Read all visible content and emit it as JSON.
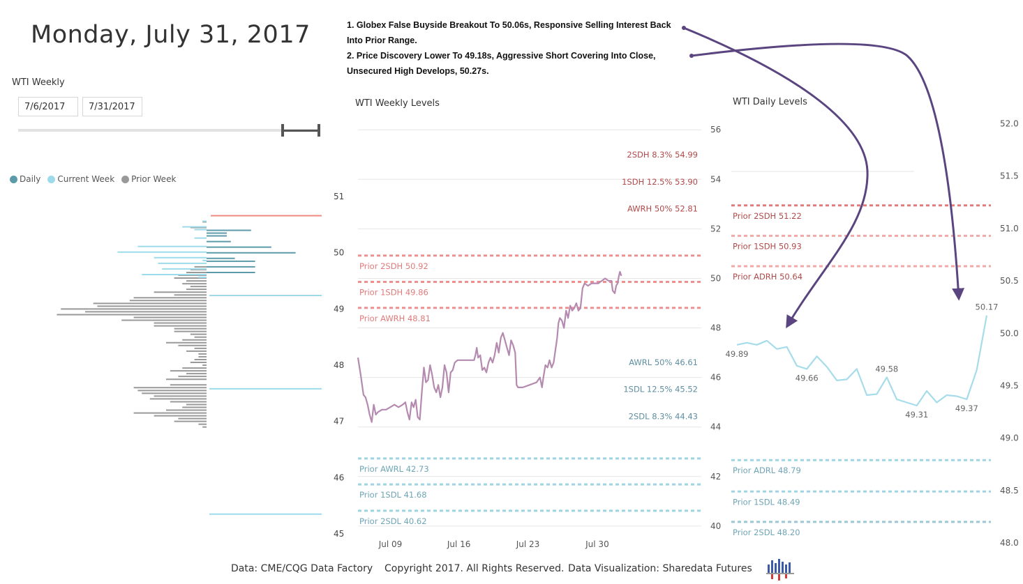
{
  "title": "Monday, July 31, 2017",
  "slicer": {
    "label": "WTI Weekly",
    "start_date": "7/6/2017",
    "end_date": "7/31/2017"
  },
  "legend": [
    {
      "label": "Daily",
      "color": "#5b9aa8"
    },
    {
      "label": "Current Week",
      "color": "#9ddbeb"
    },
    {
      "label": "Prior Week",
      "color": "#999999"
    }
  ],
  "notes": [
    "1. Globex False Buyside Breakout To 50.06s, Responsive Selling Interest Back Into Prior Range.",
    "2. Price Discovery Lower To 49.18s, Aggressive Short Covering Into Close, Unsecured High Develops, 50.27s."
  ],
  "footer": {
    "source": "Data: CME/CQG Data Factory",
    "copyright": "Copyright 2017. All Rights Reserved.",
    "viz": "Data Visualization: Sharedata Futures"
  },
  "colors": {
    "line": "#b58ab0",
    "daily_line": "#a6dcea",
    "high": "#e57373",
    "low": "#7fc6d8",
    "arrow": "#5a4580",
    "daily_bar": "#5b9aa8",
    "current_bar": "#9ddbeb",
    "prior_bar": "#999999"
  },
  "chart_data": [
    {
      "type": "bar",
      "name": "volume-profile",
      "orientation": "horizontal",
      "y_ticks": [
        51,
        50,
        49,
        48,
        47,
        46,
        45
      ],
      "ylim": [
        44.95,
        51.15
      ],
      "price_start": 50.65,
      "price_step": 0.05,
      "prior_week": [
        0,
        0,
        1,
        0,
        4,
        0,
        0,
        0,
        0,
        0,
        0,
        0,
        0,
        0,
        0,
        0,
        0,
        0,
        3,
        4,
        5,
        7,
        8,
        5,
        6,
        4,
        5,
        13,
        8,
        18,
        19,
        28,
        27,
        36,
        30,
        37,
        18,
        21,
        13,
        13,
        8,
        8,
        4,
        3,
        6,
        10,
        7,
        3,
        5,
        2,
        2,
        3,
        4,
        1,
        6,
        9,
        5,
        7,
        10,
        0,
        9,
        18,
        17,
        16,
        13,
        14,
        9,
        5,
        6,
        10,
        18,
        13,
        7,
        8,
        2,
        1
      ],
      "current_week": [
        0,
        0,
        1,
        0,
        6,
        3,
        0,
        0,
        3,
        0,
        0,
        17,
        0,
        22,
        0,
        13,
        1,
        12,
        0,
        11,
        0,
        16,
        2,
        0,
        0,
        0,
        0,
        0,
        0,
        0,
        0,
        0,
        0,
        0,
        0,
        0,
        0,
        0,
        0,
        0,
        0,
        0,
        0,
        0,
        0,
        0,
        0,
        0,
        0,
        0,
        0,
        0,
        0,
        0,
        0,
        0,
        0,
        0,
        0,
        0,
        0,
        0,
        0,
        0,
        0,
        0,
        0,
        0,
        0,
        0,
        0,
        0,
        0,
        0,
        0,
        0
      ],
      "daily": [
        0,
        0,
        0,
        0,
        0,
        11,
        5,
        5,
        0,
        6,
        0,
        16,
        0,
        22,
        0,
        7,
        12,
        0,
        12,
        0,
        12,
        0,
        0,
        0,
        0,
        0,
        0,
        0,
        0,
        0,
        0,
        0,
        0,
        0,
        0,
        0,
        0,
        0,
        0,
        0,
        0,
        0,
        0,
        0,
        0,
        0,
        0,
        0,
        0,
        0,
        0,
        0,
        0,
        0,
        0,
        0,
        0,
        0,
        0,
        0,
        0,
        0,
        0,
        0,
        0,
        0,
        0,
        0,
        0,
        0,
        0,
        0,
        0,
        0,
        0,
        0
      ],
      "level_lines": [
        {
          "price": 50.66,
          "kind": "high"
        },
        {
          "price": 49.24,
          "kind": "low"
        },
        {
          "price": 47.58,
          "kind": "low"
        },
        {
          "price": 45.35,
          "kind": "low"
        }
      ]
    },
    {
      "type": "line",
      "name": "wti-weekly-levels",
      "title": "WTI Weekly Levels",
      "ylim": [
        39.8,
        56.4
      ],
      "y_ticks": [
        56,
        54,
        52,
        50,
        48,
        46,
        44,
        42,
        40
      ],
      "x_ticks": [
        "Jul 09",
        "Jul 16",
        "Jul 23",
        "Jul 30"
      ],
      "x_tick_pos": [
        0.0945,
        0.294,
        0.495,
        0.697
      ],
      "series": [
        {
          "values": [
            [
              0.0,
              46.8
            ],
            [
              0.008,
              46.1
            ],
            [
              0.016,
              45.3
            ],
            [
              0.022,
              45.2
            ],
            [
              0.028,
              44.9
            ],
            [
              0.034,
              44.5
            ],
            [
              0.04,
              44.2
            ],
            [
              0.046,
              44.9
            ],
            [
              0.052,
              44.5
            ],
            [
              0.058,
              44.6
            ],
            [
              0.07,
              44.7
            ],
            [
              0.082,
              44.7
            ],
            [
              0.094,
              44.8
            ],
            [
              0.106,
              44.9
            ],
            [
              0.118,
              44.8
            ],
            [
              0.13,
              44.9
            ],
            [
              0.138,
              45.0
            ],
            [
              0.144,
              44.6
            ],
            [
              0.15,
              44.3
            ],
            [
              0.156,
              45.0
            ],
            [
              0.162,
              44.8
            ],
            [
              0.168,
              45.1
            ],
            [
              0.174,
              44.4
            ],
            [
              0.18,
              44.3
            ],
            [
              0.186,
              45.4
            ],
            [
              0.192,
              46.4
            ],
            [
              0.198,
              45.8
            ],
            [
              0.204,
              45.9
            ],
            [
              0.21,
              46.5
            ],
            [
              0.216,
              46.1
            ],
            [
              0.222,
              45.6
            ],
            [
              0.228,
              45.4
            ],
            [
              0.234,
              45.7
            ],
            [
              0.24,
              45.2
            ],
            [
              0.246,
              45.6
            ],
            [
              0.252,
              46.5
            ],
            [
              0.258,
              46.2
            ],
            [
              0.264,
              45.4
            ],
            [
              0.27,
              46.2
            ],
            [
              0.276,
              46.3
            ],
            [
              0.282,
              46.6
            ],
            [
              0.29,
              46.7
            ],
            [
              0.3,
              46.7
            ],
            [
              0.31,
              46.7
            ],
            [
              0.32,
              46.7
            ],
            [
              0.33,
              46.7
            ],
            [
              0.338,
              46.7
            ],
            [
              0.342,
              46.9
            ],
            [
              0.346,
              47.2
            ],
            [
              0.35,
              46.8
            ],
            [
              0.356,
              46.9
            ],
            [
              0.362,
              46.3
            ],
            [
              0.368,
              46.4
            ],
            [
              0.374,
              46.2
            ],
            [
              0.38,
              46.6
            ],
            [
              0.386,
              46.8
            ],
            [
              0.392,
              46.6
            ],
            [
              0.398,
              46.9
            ],
            [
              0.404,
              47.4
            ],
            [
              0.41,
              47.0
            ],
            [
              0.416,
              47.6
            ],
            [
              0.422,
              47.8
            ],
            [
              0.428,
              47.5
            ],
            [
              0.434,
              47.2
            ],
            [
              0.44,
              46.9
            ],
            [
              0.446,
              47.5
            ],
            [
              0.452,
              47.3
            ],
            [
              0.458,
              47.0
            ],
            [
              0.462,
              45.7
            ],
            [
              0.466,
              45.6
            ],
            [
              0.48,
              45.6
            ],
            [
              0.5,
              45.7
            ],
            [
              0.52,
              45.8
            ],
            [
              0.53,
              46.0
            ],
            [
              0.536,
              45.6
            ],
            [
              0.54,
              46.0
            ],
            [
              0.546,
              46.5
            ],
            [
              0.552,
              46.4
            ],
            [
              0.558,
              46.7
            ],
            [
              0.564,
              46.4
            ],
            [
              0.57,
              46.6
            ],
            [
              0.576,
              47.2
            ],
            [
              0.58,
              47.6
            ],
            [
              0.584,
              48.2
            ],
            [
              0.588,
              48.4
            ],
            [
              0.594,
              48.3
            ],
            [
              0.6,
              48.0
            ],
            [
              0.606,
              48.7
            ],
            [
              0.612,
              48.4
            ],
            [
              0.618,
              48.9
            ],
            [
              0.624,
              48.7
            ],
            [
              0.63,
              48.8
            ],
            [
              0.636,
              49.0
            ],
            [
              0.642,
              48.7
            ],
            [
              0.648,
              48.8
            ],
            [
              0.654,
              49.6
            ],
            [
              0.66,
              49.8
            ],
            [
              0.67,
              49.7
            ],
            [
              0.68,
              49.8
            ],
            [
              0.69,
              49.8
            ],
            [
              0.7,
              49.8
            ],
            [
              0.71,
              49.9
            ],
            [
              0.72,
              50.0
            ],
            [
              0.73,
              49.9
            ],
            [
              0.738,
              49.9
            ],
            [
              0.742,
              49.5
            ],
            [
              0.748,
              49.4
            ],
            [
              0.752,
              49.7
            ],
            [
              0.756,
              49.8
            ],
            [
              0.76,
              50.1
            ],
            [
              0.763,
              50.27
            ],
            [
              0.767,
              50.1
            ]
          ]
        }
      ],
      "levels": [
        {
          "label": "2SDH 8.3% 54.99",
          "value": 54.99,
          "kind": "high",
          "dashed": false
        },
        {
          "label": "1SDH 12.5% 53.90",
          "value": 53.9,
          "kind": "high",
          "dashed": false
        },
        {
          "label": "AWRH 50% 52.81",
          "value": 52.81,
          "kind": "high",
          "dashed": false
        },
        {
          "label": "Prior 2SDH 50.92",
          "value": 50.92,
          "kind": "high",
          "dashed": true
        },
        {
          "label": "Prior 1SDH 49.86",
          "value": 49.86,
          "kind": "high",
          "dashed": true
        },
        {
          "label": "Prior AWRH 48.81",
          "value": 48.81,
          "kind": "high",
          "dashed": true
        },
        {
          "label": "AWRL 50% 46.61",
          "value": 46.61,
          "kind": "low",
          "dashed": false
        },
        {
          "label": "1SDL 12.5% 45.52",
          "value": 45.52,
          "kind": "low",
          "dashed": false
        },
        {
          "label": "2SDL 8.3% 44.43",
          "value": 44.43,
          "kind": "low",
          "dashed": false
        },
        {
          "label": "Prior AWRL 42.73",
          "value": 42.73,
          "kind": "low",
          "dashed": true
        },
        {
          "label": "Prior 1SDL 41.68",
          "value": 41.68,
          "kind": "low",
          "dashed": true
        },
        {
          "label": "Prior 2SDL 40.62",
          "value": 40.62,
          "kind": "low",
          "dashed": true
        }
      ]
    },
    {
      "type": "line",
      "name": "wti-daily-levels",
      "title": "WTI Daily Levels",
      "ylim": [
        47.98,
        52.05
      ],
      "y_ticks": [
        52.0,
        51.5,
        51.0,
        50.5,
        50.0,
        49.5,
        49.0,
        48.5,
        48.0
      ],
      "series": [
        {
          "values": [
            49.89,
            49.91,
            49.89,
            49.93,
            49.85,
            49.87,
            49.69,
            49.66,
            49.78,
            49.68,
            49.55,
            49.56,
            49.66,
            49.41,
            49.42,
            49.58,
            49.37,
            49.34,
            49.31,
            49.45,
            49.34,
            49.41,
            49.4,
            49.37,
            49.65,
            50.17
          ]
        }
      ],
      "point_labels": [
        {
          "index": 0,
          "text": "49.89"
        },
        {
          "index": 7,
          "text": "49.66"
        },
        {
          "index": 15,
          "text": "49.58"
        },
        {
          "index": 18,
          "text": "49.31"
        },
        {
          "index": 23,
          "text": "49.37"
        },
        {
          "index": 25,
          "text": "50.17"
        }
      ],
      "levels": [
        {
          "label": "Prior 2SDH 51.22",
          "value": 51.22,
          "kind": "high",
          "dashed": true
        },
        {
          "label": "Prior 1SDH 50.93",
          "value": 50.93,
          "kind": "high",
          "dashed": true
        },
        {
          "label": "Prior ADRH 50.64",
          "value": 50.64,
          "kind": "high",
          "dashed": true
        },
        {
          "label": "Prior ADRL 48.79",
          "value": 48.79,
          "kind": "low",
          "dashed": true
        },
        {
          "label": "Prior 1SDL 48.49",
          "value": 48.49,
          "kind": "low",
          "dashed": true
        },
        {
          "label": "Prior 2SDL 48.20",
          "value": 48.2,
          "kind": "low",
          "dashed": true
        }
      ]
    }
  ]
}
